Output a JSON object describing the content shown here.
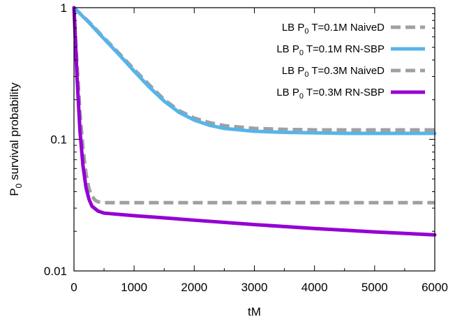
{
  "chart_data": {
    "type": "line",
    "title": "",
    "xlabel": "tM",
    "ylabel_main": "P",
    "ylabel_sub": "0",
    "ylabel_rest": " survival probability",
    "xlim": [
      0,
      6000
    ],
    "ylim": [
      0.01,
      1
    ],
    "yscale": "log",
    "grid": false,
    "legend_position": "top-right",
    "x_ticks": [
      "0",
      "1000",
      "2000",
      "3000",
      "4000",
      "5000",
      "6000"
    ],
    "x_tick_values": [
      0,
      1000,
      2000,
      3000,
      4000,
      5000,
      6000
    ],
    "y_ticks": [
      "0.01",
      "0.1",
      "1"
    ],
    "y_tick_values": [
      0.01,
      0.1,
      1
    ],
    "series": [
      {
        "legend_pre": "LB P",
        "legend_sub": "0",
        "legend_post": " T=0.1M NaiveD",
        "color": "#a0a0a0",
        "dashed": true,
        "x": [
          0,
          250,
          500,
          750,
          1000,
          1250,
          1500,
          1750,
          2000,
          2250,
          2500,
          3000,
          3500,
          4000,
          4500,
          5000,
          5500,
          6000
        ],
        "y": [
          1,
          0.78,
          0.59,
          0.45,
          0.34,
          0.26,
          0.2,
          0.165,
          0.145,
          0.134,
          0.127,
          0.121,
          0.119,
          0.118,
          0.118,
          0.118,
          0.118,
          0.118
        ]
      },
      {
        "legend_pre": "LB P",
        "legend_sub": "0",
        "legend_post": " T=0.1M RN-SBP",
        "color": "#56b4e9",
        "dashed": false,
        "x": [
          0,
          250,
          500,
          750,
          1000,
          1250,
          1500,
          1750,
          2000,
          2250,
          2500,
          3000,
          3500,
          4000,
          4500,
          5000,
          5500,
          6000
        ],
        "y": [
          1,
          0.77,
          0.58,
          0.44,
          0.33,
          0.25,
          0.195,
          0.16,
          0.14,
          0.128,
          0.121,
          0.115,
          0.113,
          0.112,
          0.111,
          0.111,
          0.111,
          0.111
        ]
      },
      {
        "legend_pre": "LB P",
        "legend_sub": "0",
        "legend_post": " T=0.3M NaiveD",
        "color": "#a0a0a0",
        "dashed": true,
        "x": [
          0,
          25,
          50,
          100,
          150,
          200,
          250,
          300,
          350,
          400,
          500,
          700,
          1000,
          2000,
          3000,
          4000,
          5000,
          6000
        ],
        "y": [
          1,
          0.6,
          0.38,
          0.16,
          0.085,
          0.055,
          0.042,
          0.037,
          0.0345,
          0.0335,
          0.033,
          0.033,
          0.033,
          0.033,
          0.033,
          0.033,
          0.033,
          0.033
        ]
      },
      {
        "legend_pre": "LB P",
        "legend_sub": "0",
        "legend_post": " T=0.3M RN-SBP",
        "color": "#9400d3",
        "dashed": false,
        "x": [
          0,
          25,
          50,
          100,
          150,
          200,
          250,
          300,
          400,
          500,
          700,
          1000,
          1500,
          2000,
          3000,
          4000,
          5000,
          6000
        ],
        "y": [
          1,
          0.55,
          0.3,
          0.115,
          0.063,
          0.043,
          0.035,
          0.031,
          0.0285,
          0.0275,
          0.027,
          0.0263,
          0.0253,
          0.0243,
          0.0225,
          0.021,
          0.0198,
          0.0188
        ]
      }
    ]
  }
}
